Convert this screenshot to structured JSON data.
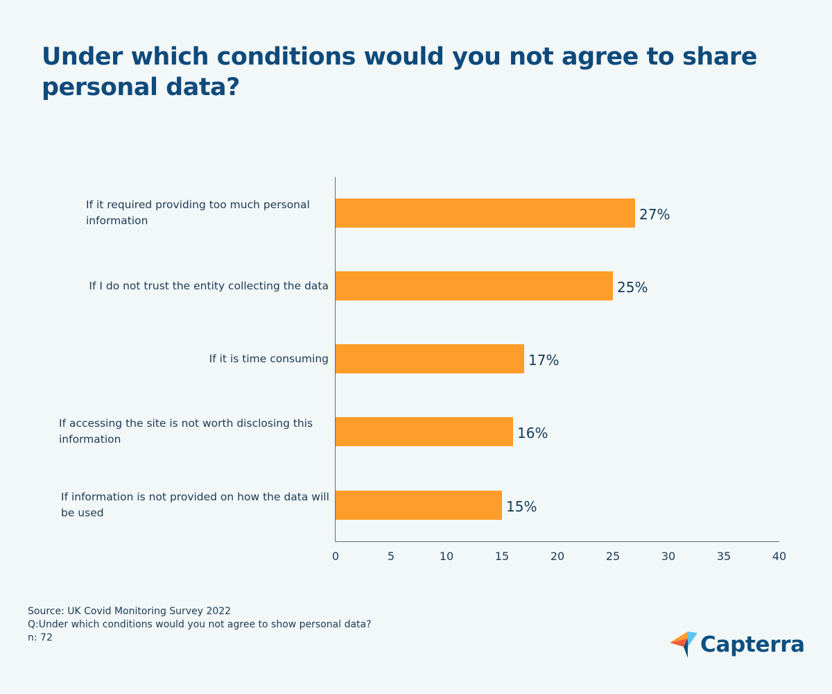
{
  "title": "Under which conditions would you not agree to share personal data?",
  "colors": {
    "background": "#f2f7f8",
    "title": "#0f4a7b",
    "bar": "#ff9d2a",
    "text": "#1c3a55",
    "axis": "#6b6b6b"
  },
  "chart_data": {
    "type": "bar",
    "orientation": "horizontal",
    "title": "Under which conditions would you not agree to share personal data?",
    "categories": [
      "If it required providing too much personal information",
      "If I do not trust the entity collecting the data",
      "If it is time consuming",
      "If accessing the site is not worth disclosing this information",
      "If information is not provided on how the data will be used"
    ],
    "values": [
      27,
      25,
      17,
      16,
      15
    ],
    "value_labels": [
      "27%",
      "25%",
      "17%",
      "16%",
      "15%"
    ],
    "xlabel": "",
    "ylabel": "",
    "xlim": [
      0,
      40
    ],
    "xticks": [
      "0",
      "5",
      "10",
      "15",
      "20",
      "25",
      "30",
      "35",
      "40"
    ],
    "grid": false,
    "legend": null
  },
  "footer": {
    "source": "Source: UK Covid Monitoring Survey 2022",
    "question": "Q:Under which conditions would you not agree to show personal data?",
    "n": "n: 72"
  },
  "logo": {
    "text": "Capterra",
    "icon": "capterra-arrow-icon"
  }
}
